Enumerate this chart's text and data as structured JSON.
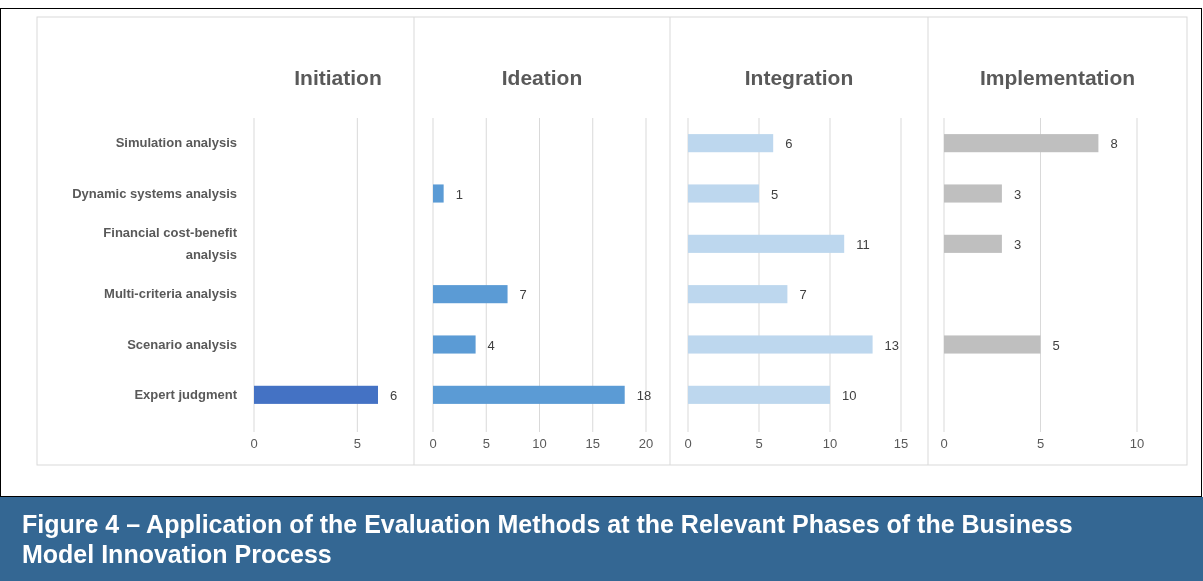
{
  "chart_data": [
    {
      "type": "bar",
      "orientation": "horizontal",
      "title": "Initiation",
      "categories": [
        "Simulation analysis",
        "Dynamic systems analysis",
        "Financial cost-benefit analysis",
        "Multi-criteria analysis",
        "Scenario analysis",
        "Expert judgment"
      ],
      "series": [
        {
          "color": "#4472c4",
          "values": [
            null,
            null,
            null,
            null,
            null,
            6
          ]
        }
      ],
      "xlim": [
        0,
        6
      ],
      "xticks": [
        0,
        5
      ],
      "grid": "x",
      "data_labels": true,
      "annotations": [
        "Figure 4 – Application of the Evaluation Methods at the Relevant Phases of the Business Model Innovation Process"
      ]
    },
    {
      "type": "bar",
      "orientation": "horizontal",
      "title": "Ideation",
      "categories": [
        null,
        null,
        null,
        null,
        null,
        null
      ],
      "series": [
        {
          "color": "#5b9bd5",
          "values": [
            null,
            1,
            null,
            7,
            4,
            18
          ]
        }
      ],
      "xlim": [
        0,
        20
      ],
      "xticks": [
        0,
        5,
        10,
        15,
        20
      ],
      "grid": "x",
      "data_labels": true,
      "tick_labels": "x"
    },
    {
      "type": "bar",
      "orientation": "horizontal",
      "title": "Integration",
      "categories": [
        null,
        null,
        null,
        null,
        null,
        null
      ],
      "series": [
        {
          "color": "#bdd7ee",
          "values": [
            6,
            5,
            11,
            7,
            13,
            10
          ]
        }
      ],
      "xlim": [
        0,
        15
      ],
      "xticks": [
        0,
        5,
        10,
        15
      ],
      "grid": "x",
      "data_labels": true,
      "tick_labels": "x"
    },
    {
      "type": "bar",
      "orientation": "horizontal",
      "title": "Implementation",
      "categories": [
        null,
        null,
        null,
        null,
        null,
        null
      ],
      "series": [
        {
          "color": "#bfbfbf",
          "values": [
            8,
            3,
            3,
            null,
            5,
            null
          ]
        }
      ],
      "xlim": [
        0,
        10
      ],
      "xticks": [
        0,
        5,
        10
      ],
      "grid": "x",
      "data_labels": true,
      "tick_labels": "x"
    }
  ]
}
